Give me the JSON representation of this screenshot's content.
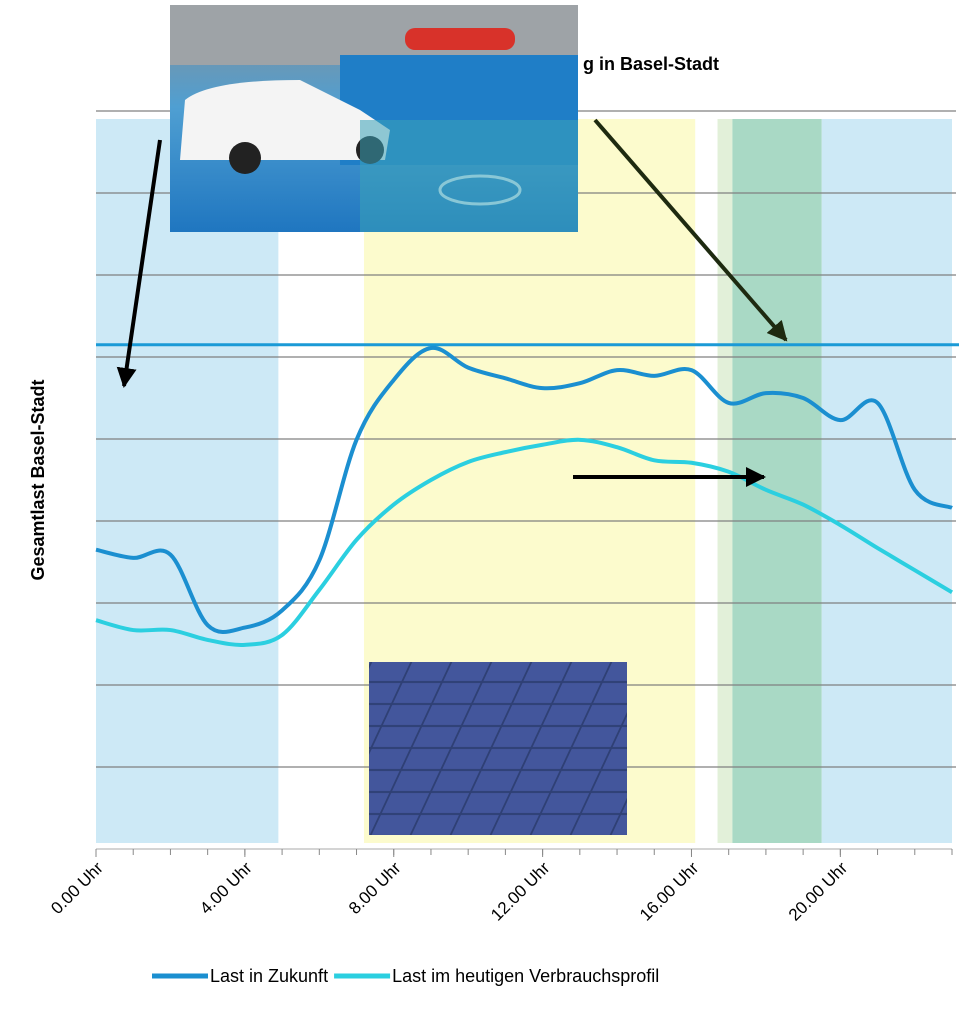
{
  "chart_data": {
    "type": "line",
    "title": "g in Basel-Stadt",
    "y_label": "Gesamtlast Basel-Stadt",
    "x": [
      0,
      1,
      2,
      3,
      4,
      5,
      6,
      7,
      8,
      9,
      10,
      11,
      12,
      13,
      14,
      15,
      16,
      17,
      18,
      19,
      20,
      21,
      22,
      23
    ],
    "xlim": [
      0,
      23
    ],
    "xticks": [
      {
        "value": 0,
        "label": "0.00 Uhr"
      },
      {
        "value": 4,
        "label": "4.00 Uhr"
      },
      {
        "value": 8,
        "label": "8.00 Uhr"
      },
      {
        "value": 12,
        "label": "12.00 Uhr"
      },
      {
        "value": 16,
        "label": "16.00 Uhr"
      },
      {
        "value": 20,
        "label": "20.00 Uhr"
      }
    ],
    "ylim": [
      0,
      9
    ],
    "yticks": [
      1,
      2,
      3,
      4,
      5,
      6,
      7,
      8,
      9
    ],
    "grid": true,
    "reference_line": {
      "value": 6.15,
      "color": "#1b9ad6"
    },
    "bands": [
      {
        "start": 0,
        "end": 4.9,
        "color": "#cde9f6"
      },
      {
        "start": 7.2,
        "end": 16.1,
        "color": "#fcfbcd"
      },
      {
        "start": 16.7,
        "end": 17.1,
        "color": "#e2f0d9"
      },
      {
        "start": 17.1,
        "end": 19.5,
        "color": "#a9d9c5"
      },
      {
        "start": 19.5,
        "end": 23,
        "color": "#cde9f6"
      }
    ],
    "legend": "bottom",
    "series": [
      {
        "name": "Last in Zukunft",
        "color": "#1b8fd0",
        "values": [
          3.65,
          3.55,
          3.59,
          2.73,
          2.7,
          2.91,
          3.52,
          4.99,
          5.72,
          6.11,
          5.87,
          5.74,
          5.62,
          5.68,
          5.84,
          5.77,
          5.84,
          5.44,
          5.56,
          5.5,
          5.23,
          5.44,
          4.38,
          4.16
        ]
      },
      {
        "name": "Last im heutigen Verbrauchsprofil",
        "color": "#2bcfe0",
        "values": [
          2.79,
          2.67,
          2.67,
          2.55,
          2.49,
          2.61,
          3.16,
          3.77,
          4.2,
          4.5,
          4.72,
          4.84,
          4.93,
          4.99,
          4.9,
          4.74,
          4.71,
          4.6,
          4.38,
          4.2,
          3.95,
          3.67,
          3.4,
          3.13
        ]
      }
    ]
  }
}
